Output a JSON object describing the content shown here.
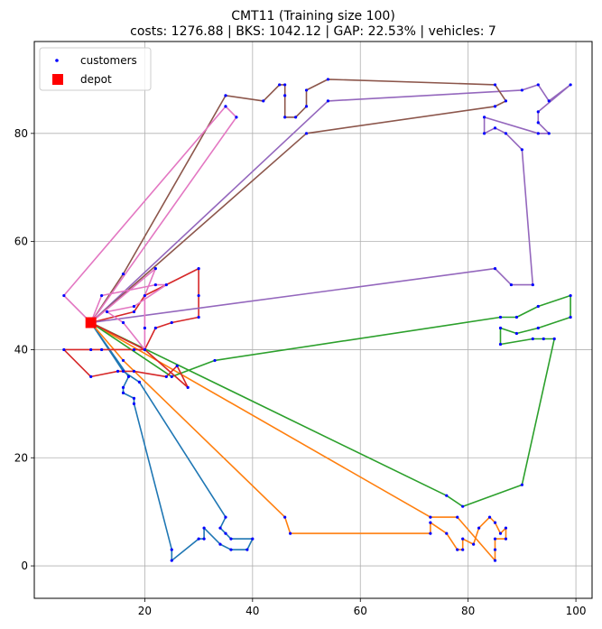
{
  "chart_data": {
    "type": "line",
    "title_line1": "CMT11 (Training size 100)",
    "title_line2": "costs: 1276.88 | BKS: 1042.12 | GAP: 22.53% | vehicles: 7",
    "xlim": [
      -0.5,
      103
    ],
    "ylim": [
      -6,
      97
    ],
    "xticks": [
      20,
      40,
      60,
      80,
      100
    ],
    "yticks": [
      0,
      20,
      40,
      60,
      80
    ],
    "grid": true,
    "legend_position": "top-left",
    "legend": {
      "customers": "customers",
      "depot": "depot"
    },
    "depot": {
      "x": 10,
      "y": 45,
      "color": "#ff0000"
    },
    "customers_color": "#0000ff",
    "routes": [
      {
        "color": "#1f77b4",
        "points": [
          [
            10,
            45
          ],
          [
            17,
            35
          ],
          [
            16,
            33
          ],
          [
            16,
            32
          ],
          [
            18,
            31
          ],
          [
            18,
            30
          ],
          [
            25,
            3
          ],
          [
            25,
            1
          ],
          [
            30,
            5
          ],
          [
            31,
            5
          ],
          [
            31,
            7
          ],
          [
            34,
            4
          ],
          [
            36,
            3
          ],
          [
            39,
            3
          ],
          [
            40,
            5
          ],
          [
            36,
            5
          ],
          [
            35,
            6
          ],
          [
            34,
            7
          ],
          [
            35,
            9
          ],
          [
            19,
            34
          ],
          [
            16,
            36
          ],
          [
            10,
            45
          ]
        ]
      },
      {
        "color": "#ff7f0e",
        "points": [
          [
            10,
            45
          ],
          [
            16,
            38
          ],
          [
            46,
            9
          ],
          [
            47,
            6
          ],
          [
            73,
            6
          ],
          [
            73,
            8
          ],
          [
            76,
            6
          ],
          [
            78,
            3
          ],
          [
            79,
            3
          ],
          [
            79,
            5
          ],
          [
            81,
            4
          ],
          [
            82,
            7
          ],
          [
            84,
            9
          ],
          [
            85,
            8
          ],
          [
            86,
            6
          ],
          [
            87,
            7
          ],
          [
            87,
            5
          ],
          [
            85,
            5
          ],
          [
            85,
            3
          ],
          [
            85,
            1
          ],
          [
            78,
            9
          ],
          [
            73,
            9
          ],
          [
            10,
            45
          ]
        ]
      },
      {
        "color": "#2ca02c",
        "points": [
          [
            10,
            45
          ],
          [
            25,
            35
          ],
          [
            33,
            38
          ],
          [
            86,
            46
          ],
          [
            89,
            46
          ],
          [
            93,
            48
          ],
          [
            99,
            50
          ],
          [
            99,
            46
          ],
          [
            93,
            44
          ],
          [
            89,
            43
          ],
          [
            86,
            44
          ],
          [
            86,
            41
          ],
          [
            92,
            42
          ],
          [
            94,
            42
          ],
          [
            96,
            42
          ],
          [
            90,
            15
          ],
          [
            79,
            11
          ],
          [
            76,
            13
          ],
          [
            10,
            45
          ]
        ]
      },
      {
        "color": "#d62728",
        "points": [
          [
            10,
            45
          ],
          [
            20,
            40
          ],
          [
            28,
            33
          ],
          [
            26,
            37
          ],
          [
            24,
            35
          ],
          [
            18,
            36
          ],
          [
            15,
            36
          ],
          [
            10,
            35
          ],
          [
            5,
            40
          ],
          [
            10,
            40
          ],
          [
            12,
            40
          ],
          [
            18,
            40
          ],
          [
            20,
            40
          ],
          [
            22,
            44
          ],
          [
            25,
            45
          ],
          [
            30,
            46
          ],
          [
            30,
            50
          ],
          [
            30,
            55
          ],
          [
            20,
            50
          ],
          [
            18,
            47
          ],
          [
            10,
            45
          ]
        ]
      },
      {
        "color": "#9467bd",
        "points": [
          [
            10,
            45
          ],
          [
            85,
            55
          ],
          [
            88,
            52
          ],
          [
            92,
            52
          ],
          [
            90,
            77
          ],
          [
            87,
            80
          ],
          [
            85,
            81
          ],
          [
            83,
            80
          ],
          [
            83,
            83
          ],
          [
            93,
            80
          ],
          [
            95,
            80
          ],
          [
            93,
            82
          ],
          [
            93,
            84
          ],
          [
            99,
            89
          ],
          [
            95,
            86
          ],
          [
            93,
            89
          ],
          [
            90,
            88
          ],
          [
            54,
            86
          ],
          [
            10,
            45
          ]
        ]
      },
      {
        "color": "#8c564b",
        "points": [
          [
            10,
            45
          ],
          [
            50,
            80
          ],
          [
            85,
            85
          ],
          [
            87,
            86
          ],
          [
            85,
            89
          ],
          [
            54,
            90
          ],
          [
            50,
            88
          ],
          [
            50,
            85
          ],
          [
            48,
            83
          ],
          [
            46,
            83
          ],
          [
            46,
            87
          ],
          [
            46,
            89
          ],
          [
            45,
            89
          ],
          [
            42,
            86
          ],
          [
            35,
            87
          ],
          [
            16,
            54
          ],
          [
            10,
            45
          ]
        ]
      },
      {
        "color": "#e377c2",
        "points": [
          [
            10,
            45
          ],
          [
            37,
            83
          ],
          [
            35,
            85
          ],
          [
            5,
            50
          ],
          [
            10,
            45
          ],
          [
            12,
            50
          ],
          [
            22,
            52
          ],
          [
            24,
            52
          ],
          [
            18,
            48
          ],
          [
            13,
            47
          ],
          [
            16,
            45
          ],
          [
            20,
            40
          ],
          [
            20,
            44
          ],
          [
            20,
            50
          ],
          [
            22,
            55
          ],
          [
            10,
            45
          ]
        ]
      }
    ]
  }
}
